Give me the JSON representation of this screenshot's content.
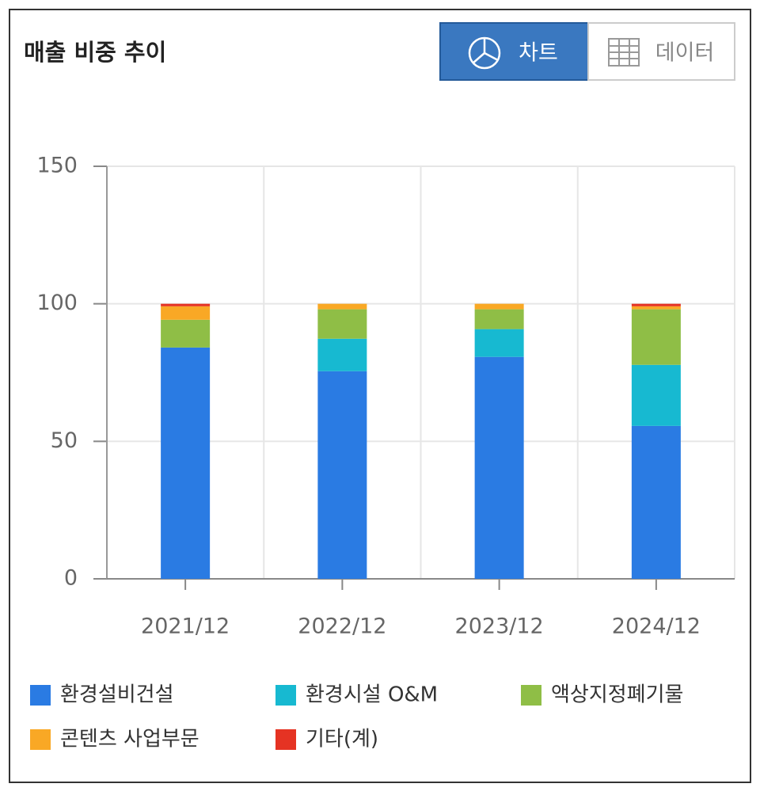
{
  "header": {
    "title": "매출 비중 추이",
    "buttons": [
      "차트",
      "데이터"
    ]
  },
  "chart_data": {
    "type": "stacked-bar",
    "categories": [
      "2021/12",
      "2022/12",
      "2023/12",
      "2024/12"
    ],
    "series": [
      {
        "name": "환경설비건설",
        "color": "#2a7be3",
        "values": [
          84.1,
          75.5,
          80.7,
          55.6
        ]
      },
      {
        "name": "환경시설 O&M",
        "color": "#17b9d1",
        "values": [
          0,
          11.8,
          10.1,
          22.2
        ]
      },
      {
        "name": "액상지정폐기물",
        "color": "#8fbe46",
        "values": [
          10.1,
          10.7,
          7.2,
          20.2
        ]
      },
      {
        "name": "콘텐츠 사업부문",
        "color": "#f9a825",
        "values": [
          4.9,
          2,
          2,
          1.1
        ]
      },
      {
        "name": "기타(계)",
        "color": "#e53323",
        "values": [
          0.9,
          0,
          0,
          0.9
        ]
      }
    ],
    "ylim": [
      0,
      150
    ],
    "yticks": [
      0,
      50,
      100,
      150
    ],
    "grid": true
  }
}
